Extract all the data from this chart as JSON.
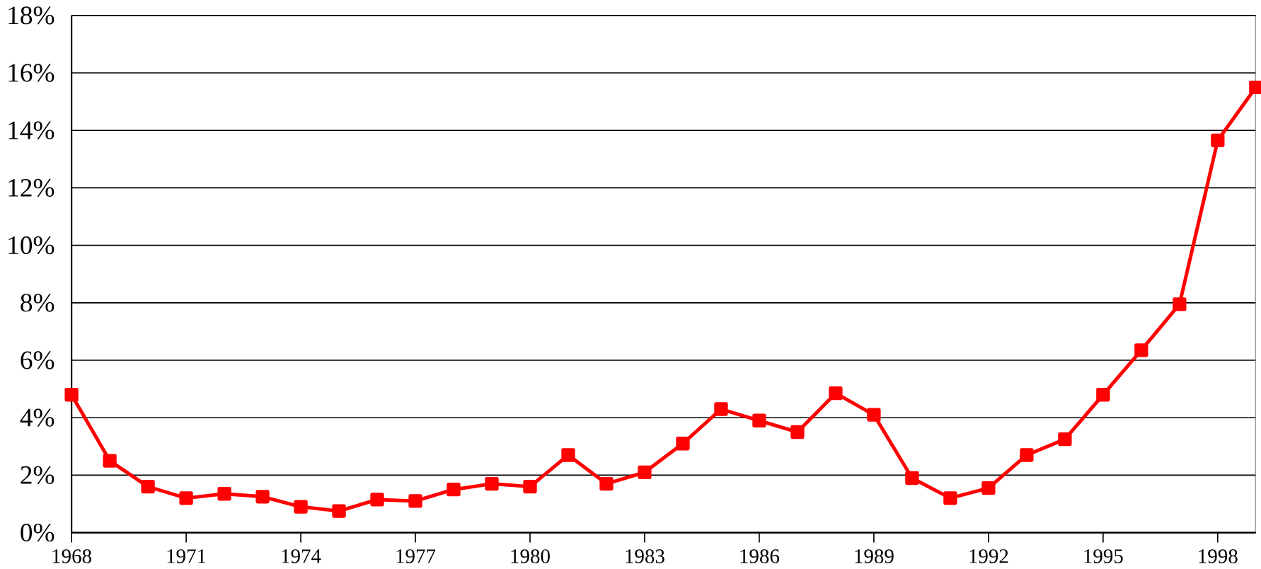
{
  "chart_data": {
    "type": "line",
    "x": [
      1968,
      1969,
      1970,
      1971,
      1972,
      1973,
      1974,
      1975,
      1976,
      1977,
      1978,
      1979,
      1980,
      1981,
      1982,
      1983,
      1984,
      1985,
      1986,
      1987,
      1988,
      1989,
      1990,
      1991,
      1992,
      1993,
      1994,
      1995,
      1996,
      1997,
      1998,
      1999
    ],
    "series": [
      {
        "color": "#ff0000",
        "values": [
          4.8,
          2.5,
          1.6,
          1.2,
          1.35,
          1.25,
          0.9,
          0.75,
          1.15,
          1.1,
          1.5,
          1.7,
          1.6,
          2.7,
          1.7,
          2.1,
          3.1,
          4.3,
          3.9,
          3.5,
          4.85,
          4.1,
          1.9,
          1.2,
          1.55,
          2.7,
          3.25,
          4.8,
          6.35,
          7.95,
          13.65,
          15.5
        ]
      }
    ],
    "xlim": [
      1968,
      1999
    ],
    "xticks": [
      1968,
      1971,
      1974,
      1977,
      1980,
      1983,
      1986,
      1989,
      1992,
      1995,
      1998
    ],
    "ylim": [
      0,
      18
    ],
    "yticks": [
      {
        "value": 0,
        "label": "0%"
      },
      {
        "value": 2,
        "label": "2%"
      },
      {
        "value": 4,
        "label": "4%"
      },
      {
        "value": 6,
        "label": "6%"
      },
      {
        "value": 8,
        "label": "8%"
      },
      {
        "value": 10,
        "label": "10%"
      },
      {
        "value": 12,
        "label": "12%"
      },
      {
        "value": 14,
        "label": "14%"
      },
      {
        "value": 16,
        "label": "16%"
      },
      {
        "value": 18,
        "label": "18%"
      }
    ],
    "grid": "y",
    "marker": "square",
    "line_style": "solid"
  }
}
